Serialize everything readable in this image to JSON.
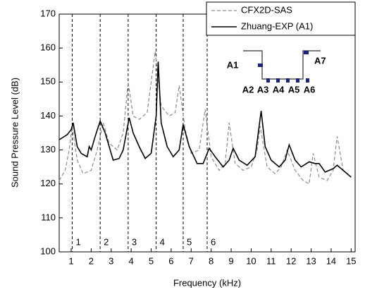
{
  "chart_data": {
    "type": "line",
    "x_label": "Frequency (kHz)",
    "y_label": "Sound Pressure Level (dB)",
    "xlim": [
      0.4,
      15.2
    ],
    "ylim": [
      100,
      170
    ],
    "xticks": [
      1,
      2,
      3,
      4,
      5,
      6,
      7,
      8,
      9,
      10,
      11,
      12,
      13,
      14,
      15
    ],
    "yticks": [
      100,
      110,
      120,
      130,
      140,
      150,
      160,
      170
    ],
    "legend": "top-right",
    "series": [
      {
        "name": "CFX2D-SAS",
        "color": "#8c8c8c",
        "dashed": true,
        "x": [
          0.4,
          0.7,
          0.9,
          1.05,
          1.3,
          1.6,
          2.0,
          2.3,
          2.6,
          2.9,
          3.3,
          3.6,
          3.85,
          4.1,
          4.4,
          4.8,
          5.2,
          5.5,
          5.9,
          6.2,
          6.4,
          6.7,
          7.0,
          7.4,
          7.7,
          8.0,
          8.4,
          8.7,
          8.9,
          9.2,
          9.6,
          10.0,
          10.3,
          10.45,
          10.8,
          11.2,
          11.5,
          11.8,
          12.2,
          12.6,
          12.9,
          13.1,
          13.4,
          13.8,
          14.1,
          14.3,
          14.6,
          15.0
        ],
        "values": [
          121,
          124,
          130,
          137,
          127,
          123,
          124,
          130,
          138,
          132,
          130,
          135,
          150,
          140,
          139,
          141,
          159,
          143,
          140,
          141,
          149,
          136,
          129,
          130,
          142,
          128,
          124,
          126,
          138,
          126,
          124,
          125,
          130,
          137,
          125,
          123,
          125,
          130,
          124,
          121,
          120,
          129,
          122,
          121,
          124,
          134,
          124,
          122
        ]
      },
      {
        "name": "Zhuang-EXP (A1)",
        "color": "#000000",
        "dashed": false,
        "x": [
          0.4,
          0.8,
          1.0,
          1.1,
          1.3,
          1.5,
          1.8,
          1.9,
          2.0,
          2.2,
          2.45,
          2.7,
          2.9,
          3.1,
          3.4,
          3.6,
          3.9,
          4.1,
          4.4,
          4.7,
          5.0,
          5.25,
          5.35,
          5.5,
          5.8,
          6.1,
          6.4,
          6.6,
          6.9,
          7.3,
          7.6,
          7.9,
          8.2,
          8.6,
          8.9,
          9.1,
          9.4,
          9.8,
          10.2,
          10.5,
          10.7,
          11.0,
          11.4,
          11.7,
          11.9,
          12.2,
          12.5,
          12.9,
          13.2,
          13.4,
          13.7,
          14.1,
          14.3,
          14.7,
          15.0
        ],
        "values": [
          133,
          134.5,
          136,
          138,
          131,
          129,
          128,
          131,
          130,
          134,
          138.5,
          135,
          131,
          127,
          127.5,
          130,
          139.5,
          135,
          131,
          127.5,
          129,
          140,
          156,
          138,
          131,
          128,
          130,
          137.5,
          131,
          126,
          126,
          130.5,
          128,
          125,
          127,
          130.5,
          127,
          125.5,
          128,
          141.5,
          131,
          127,
          125,
          127,
          131.5,
          127,
          125,
          126.5,
          126,
          126,
          123.5,
          124.5,
          125.5,
          123.5,
          122
        ]
      }
    ],
    "markers": [
      {
        "x": 1.05,
        "label": "1"
      },
      {
        "x": 2.45,
        "label": "2"
      },
      {
        "x": 3.85,
        "label": "3"
      },
      {
        "x": 5.25,
        "label": "4"
      },
      {
        "x": 6.6,
        "label": "5"
      },
      {
        "x": 7.8,
        "label": "6"
      }
    ],
    "inset_labels": [
      "A1",
      "A2",
      "A3",
      "A4",
      "A5",
      "A6",
      "A7"
    ]
  }
}
